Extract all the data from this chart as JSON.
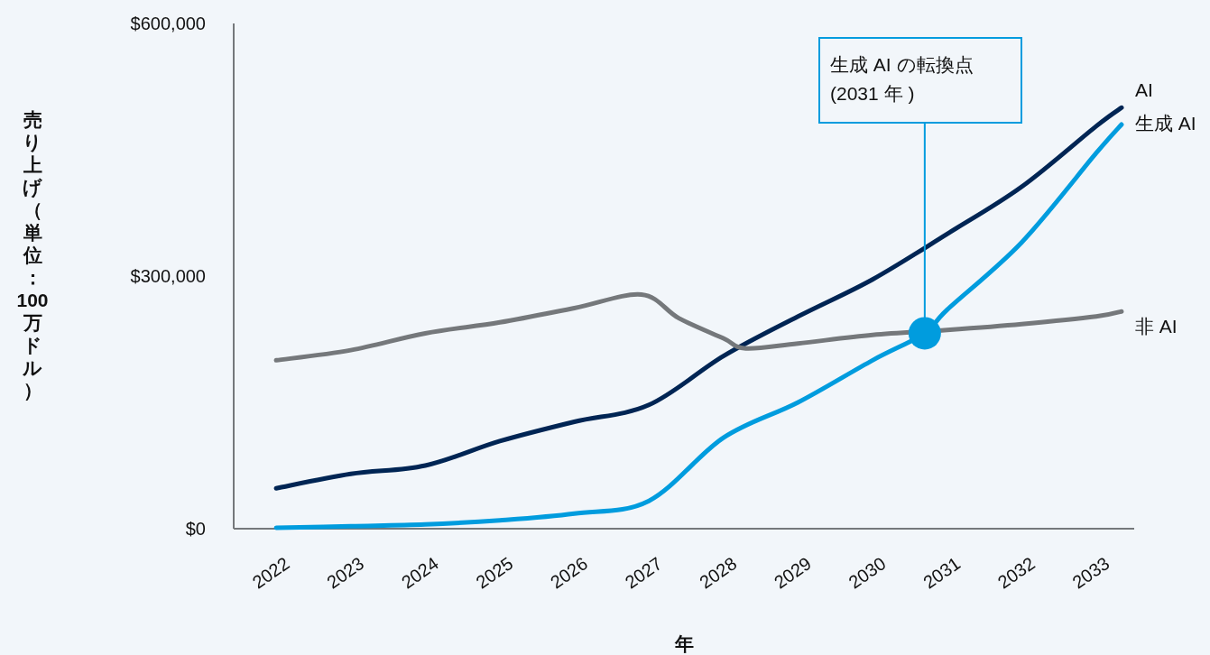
{
  "chart_data": {
    "type": "line",
    "xlabel": "年",
    "ylabel": "売り上げ（単位：100万ドル）",
    "xlim": [
      2021.43,
      2033.51
    ],
    "ylim": [
      0,
      600000
    ],
    "xticks": [
      2022,
      2023,
      2024,
      2025,
      2026,
      2027,
      2028,
      2029,
      2030,
      2031,
      2032,
      2033
    ],
    "yticks": [
      {
        "value": 0,
        "label": "$0"
      },
      {
        "value": 300000,
        "label": "$300,000"
      },
      {
        "value": 600000,
        "label": "$600,000"
      }
    ],
    "grid": false,
    "legend": false,
    "marker": "none",
    "line_style": "solid",
    "series": [
      {
        "name": "AI",
        "color": "#002554",
        "x": [
          2022,
          2023,
          2024,
          2025,
          2026,
          2027,
          2028,
          2029,
          2030,
          2031,
          2032,
          2033,
          2033.34
        ],
        "values": [
          48000,
          65000,
          75000,
          104000,
          127000,
          147000,
          205000,
          252000,
          296000,
          350000,
          406000,
          478000,
          500000
        ]
      },
      {
        "name": "生成 AI",
        "color": "#009cde",
        "x": [
          2022,
          2023,
          2024,
          2025,
          2026,
          2027,
          2028,
          2029,
          2030,
          2030.7,
          2031,
          2032,
          2033,
          2033.34
        ],
        "values": [
          1000,
          3000,
          5000,
          10000,
          18000,
          33000,
          108000,
          150000,
          200000,
          232000,
          260000,
          340000,
          446000,
          480000
        ]
      },
      {
        "name": "非 AI",
        "color": "#75787b",
        "x": [
          2022,
          2023,
          2024,
          2025,
          2026,
          2026.9,
          2027.4,
          2028,
          2028.3,
          2029,
          2030,
          2031,
          2032,
          2033,
          2033.34
        ],
        "values": [
          200000,
          212000,
          232000,
          245000,
          262000,
          278000,
          250000,
          226000,
          214000,
          220000,
          230000,
          236000,
          243000,
          252000,
          258000
        ]
      }
    ],
    "annotations": [
      {
        "text": "生成 AI の転換点 (2031 年 )",
        "x": 2030.7,
        "y": 232000
      }
    ]
  }
}
